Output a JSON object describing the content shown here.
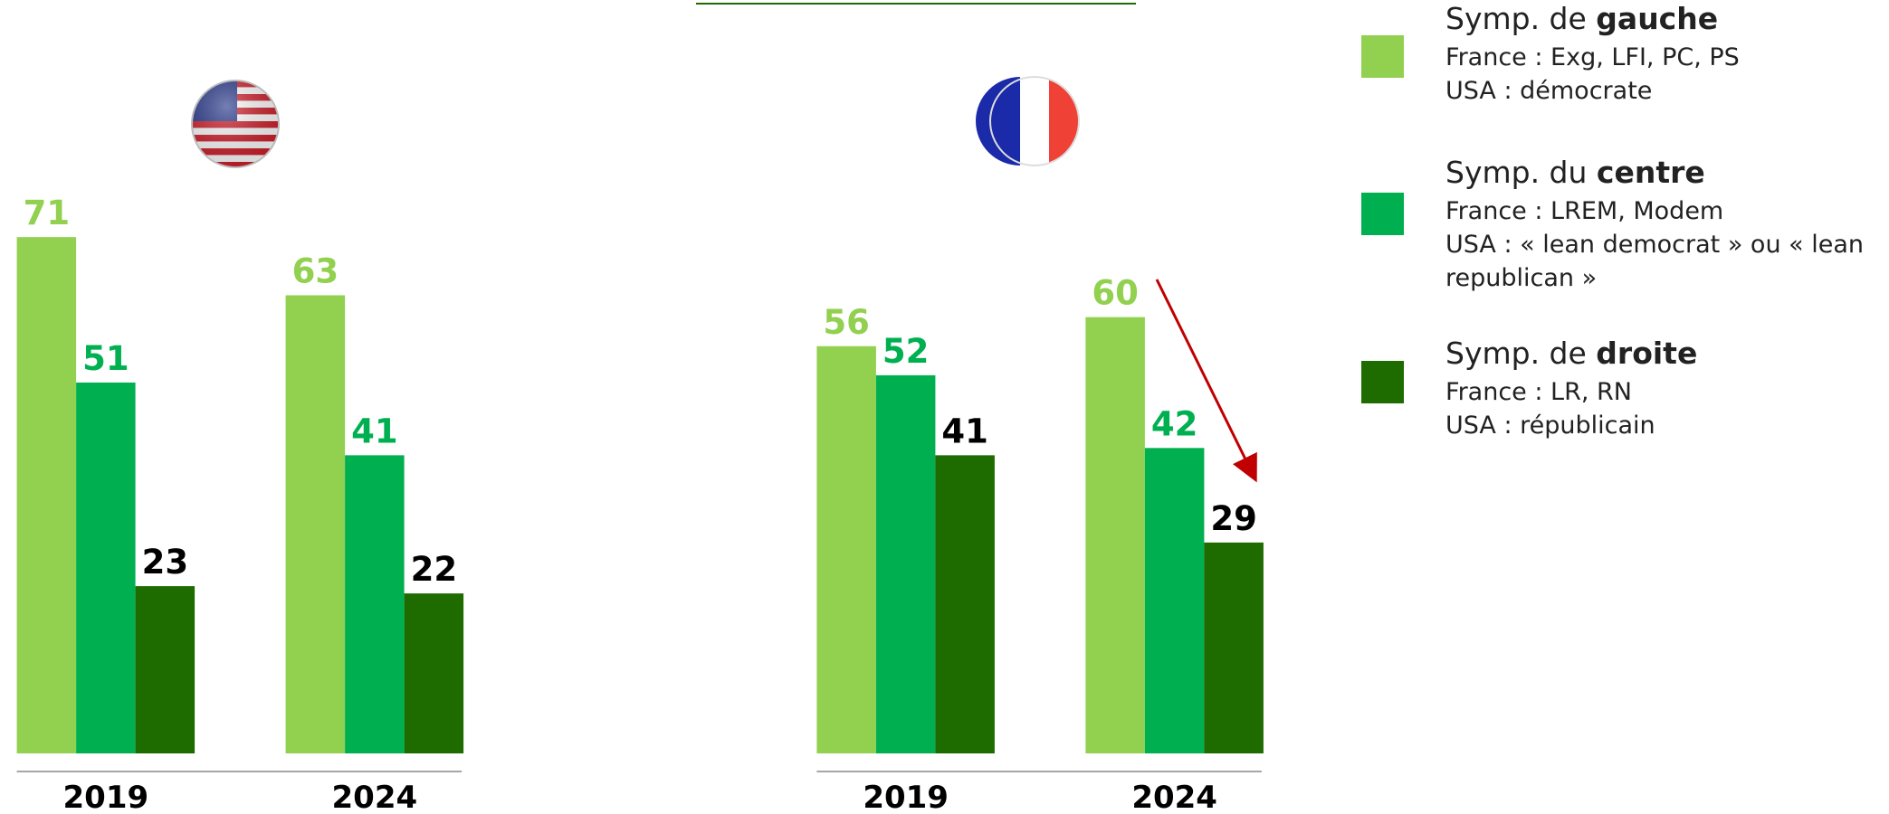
{
  "chart_data": [
    {
      "type": "bar",
      "categories": [
        "2019",
        "2024"
      ],
      "series": [
        {
          "color": "#92d050",
          "label_color": "#92d050",
          "values": [
            71,
            63
          ]
        },
        {
          "color": "#00b050",
          "label_color": "#00b050",
          "values": [
            51,
            41
          ]
        },
        {
          "color": "#1e6b00",
          "label_color": "#000000",
          "values": [
            23,
            22
          ]
        }
      ]
    },
    {
      "type": "bar",
      "categories": [
        "2019",
        "2024"
      ],
      "series": [
        {
          "color": "#92d050",
          "label_color": "#92d050",
          "values": [
            56,
            60
          ]
        },
        {
          "color": "#00b050",
          "label_color": "#00b050",
          "values": [
            52,
            42
          ]
        },
        {
          "color": "#1e6b00",
          "label_color": "#000000",
          "values": [
            41,
            29
          ]
        }
      ]
    }
  ],
  "legend": [
    {
      "prefix": "Symp. de ",
      "name": "gauche",
      "color": "#92d050",
      "lines": [
        "France : Exg, LFI, PC, PS",
        "USA : démocrate"
      ]
    },
    {
      "prefix": "Symp. du ",
      "name": "centre",
      "color": "#00b050",
      "lines": [
        "France : LREM, Modem",
        "USA : « lean democrat » ou « lean",
        "republican »"
      ]
    },
    {
      "prefix": "Symp. de ",
      "name": "droite",
      "color": "#1e6b00",
      "lines": [
        "France : LR, RN",
        "USA : républicain"
      ]
    }
  ]
}
